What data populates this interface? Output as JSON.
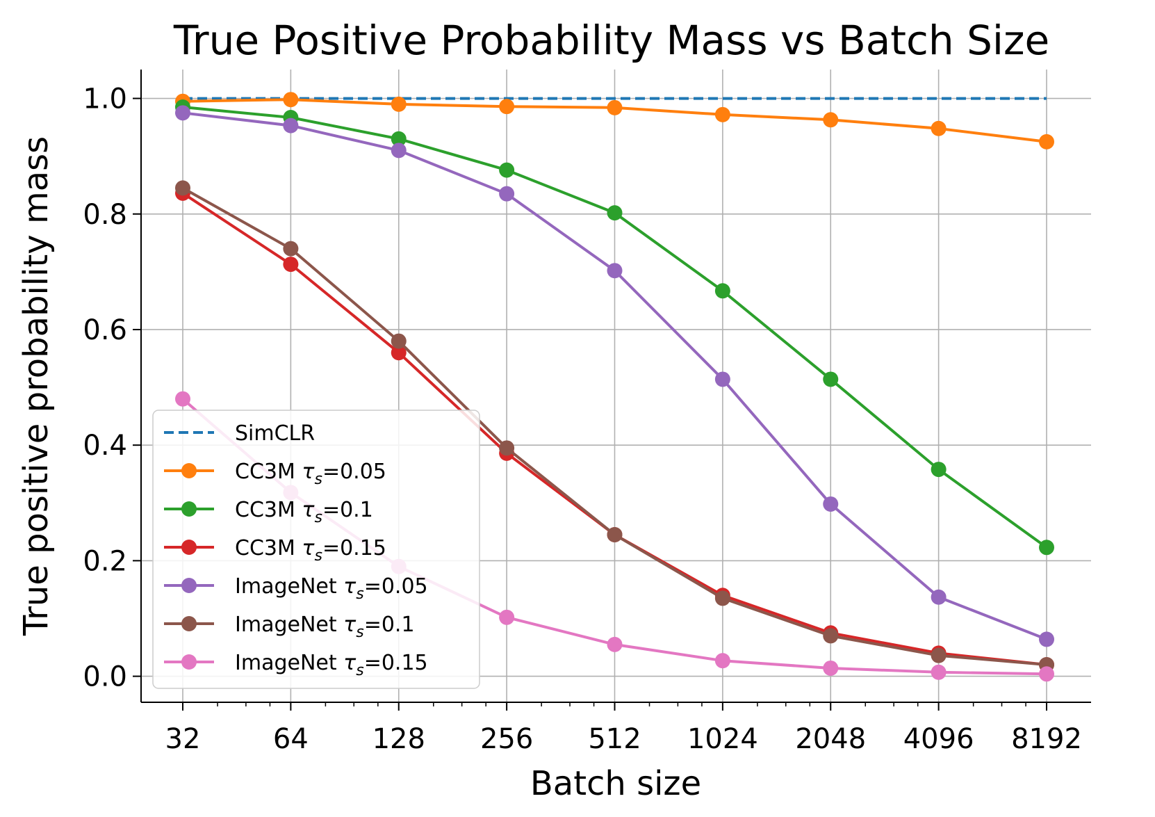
{
  "chart_data": {
    "type": "line",
    "title": "True Positive Probability Mass vs Batch Size",
    "xlabel": "Batch size",
    "ylabel": "True positive probability mass",
    "x_scale": "log2",
    "x": [
      32,
      64,
      128,
      256,
      512,
      1024,
      2048,
      4096,
      8192
    ],
    "x_tick_labels": [
      "32",
      "64",
      "128",
      "256",
      "512",
      "1024",
      "2048",
      "4096",
      "8192"
    ],
    "y_ticks": [
      0.0,
      0.2,
      0.4,
      0.6,
      0.8,
      1.0
    ],
    "y_tick_labels": [
      "0.0",
      "0.2",
      "0.4",
      "0.6",
      "0.8",
      "1.0"
    ],
    "ylim": [
      -0.045,
      1.05
    ],
    "grid": true,
    "legend_position": "lower-left",
    "series": [
      {
        "name": "SimCLR",
        "tau": "",
        "color": "#1f77b4",
        "style": "dashed",
        "marker": false,
        "values": [
          1.0,
          1.0,
          1.0,
          1.0,
          1.0,
          1.0,
          1.0,
          1.0,
          1.0
        ]
      },
      {
        "name": "CC3M",
        "tau": "0.05",
        "color": "#ff7f0e",
        "style": "solid",
        "marker": true,
        "values": [
          0.995,
          0.998,
          0.99,
          0.986,
          0.984,
          0.972,
          0.963,
          0.948,
          0.925
        ]
      },
      {
        "name": "CC3M",
        "tau": "0.1",
        "color": "#2ca02c",
        "style": "solid",
        "marker": true,
        "values": [
          0.985,
          0.967,
          0.93,
          0.876,
          0.802,
          0.667,
          0.514,
          0.358,
          0.223
        ]
      },
      {
        "name": "CC3M",
        "tau": "0.15",
        "color": "#d62728",
        "style": "solid",
        "marker": true,
        "values": [
          0.836,
          0.713,
          0.56,
          0.386,
          0.245,
          0.14,
          0.075,
          0.04,
          0.02
        ]
      },
      {
        "name": "ImageNet",
        "tau": "0.05",
        "color": "#9467bd",
        "style": "solid",
        "marker": true,
        "values": [
          0.975,
          0.953,
          0.91,
          0.835,
          0.702,
          0.514,
          0.298,
          0.137,
          0.064
        ]
      },
      {
        "name": "ImageNet",
        "tau": "0.1",
        "color": "#8c564b",
        "style": "solid",
        "marker": true,
        "values": [
          0.845,
          0.74,
          0.58,
          0.395,
          0.245,
          0.135,
          0.07,
          0.036,
          0.02
        ]
      },
      {
        "name": "ImageNet",
        "tau": "0.15",
        "color": "#e377c2",
        "style": "solid",
        "marker": true,
        "values": [
          0.48,
          0.318,
          0.19,
          0.102,
          0.055,
          0.027,
          0.014,
          0.007,
          0.004
        ]
      }
    ],
    "legend_tau_symbol": "τ",
    "legend_tau_subscript": "s"
  }
}
